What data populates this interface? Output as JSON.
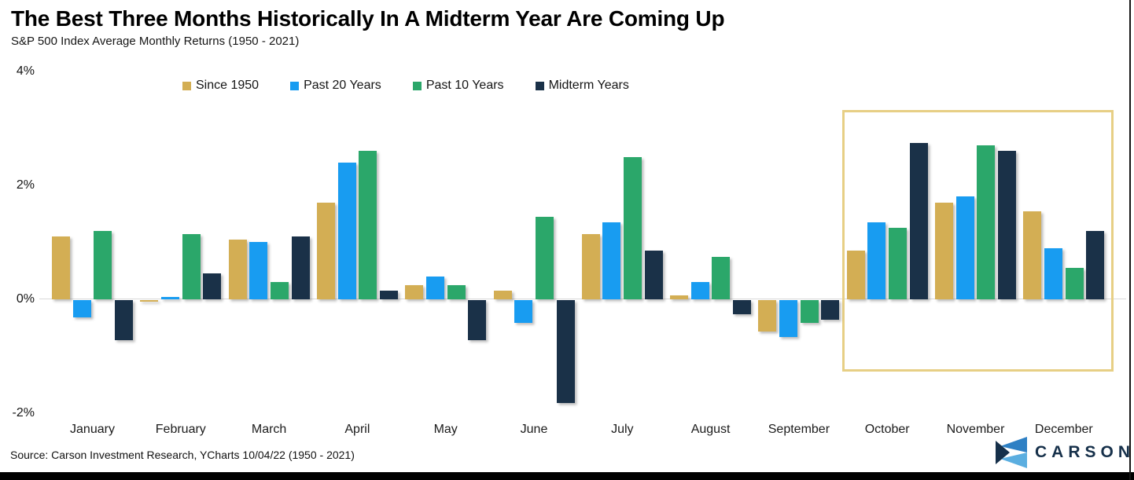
{
  "header": {
    "title": "The Best Three Months Historically In A Midterm Year Are Coming Up",
    "subtitle": "S&P 500 Index Average Monthly Returns (1950 - 2021)"
  },
  "chart_data": {
    "type": "bar",
    "title": "The Best Three Months Historically In A Midterm Year Are Coming Up",
    "subtitle": "S&P 500 Index Average Monthly Returns (1950 - 2021)",
    "unit": "%",
    "categories": [
      "January",
      "February",
      "March",
      "April",
      "May",
      "June",
      "July",
      "August",
      "September",
      "October",
      "November",
      "December"
    ],
    "series": [
      {
        "name": "Since 1950",
        "color": "#D3AE54",
        "values": [
          1.1,
          -0.03,
          1.05,
          1.7,
          0.25,
          0.15,
          1.15,
          0.07,
          -0.55,
          0.85,
          1.7,
          1.55
        ]
      },
      {
        "name": "Past 20 Years",
        "color": "#189CF1",
        "values": [
          -0.3,
          0.04,
          1.0,
          2.4,
          0.4,
          -0.4,
          1.35,
          0.3,
          -0.65,
          1.35,
          1.8,
          0.9
        ]
      },
      {
        "name": "Past 10 Years",
        "color": "#2BA76A",
        "values": [
          1.2,
          1.15,
          0.3,
          2.6,
          0.25,
          1.45,
          2.5,
          0.75,
          -0.4,
          1.25,
          2.7,
          0.55
        ]
      },
      {
        "name": "Midterm Years",
        "color": "#1A3148",
        "values": [
          -0.7,
          0.45,
          1.1,
          0.15,
          -0.7,
          -1.8,
          0.85,
          -0.25,
          -0.35,
          2.75,
          2.6,
          1.2
        ]
      }
    ],
    "ylim": [
      -2,
      4
    ],
    "yticks": [
      {
        "label": "4%",
        "value": 4
      },
      {
        "label": "2%",
        "value": 2
      },
      {
        "label": "0%",
        "value": 0
      },
      {
        "label": "-2%",
        "value": -2
      }
    ],
    "grid": "baseline-only",
    "legend_position": "top",
    "highlight": {
      "from_month": "October",
      "to_month": "December",
      "border_color": "#E7CF85"
    }
  },
  "footer": {
    "source": "Source: Carson Investment Research, YCharts 10/04/22 (1950 - 2021)",
    "logo_text": "CARSON"
  }
}
